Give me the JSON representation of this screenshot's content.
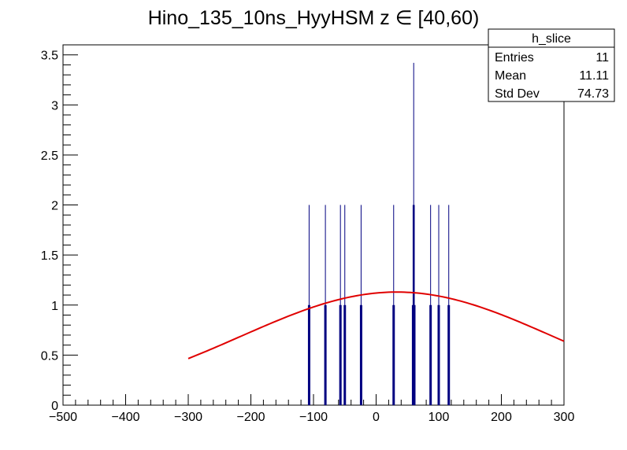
{
  "chart_data": {
    "type": "bar",
    "title": "Hino_135_10ns_HyyHSM z  ∈ [40,60)",
    "xlabel": "",
    "ylabel": "",
    "xlim": [
      -500,
      300
    ],
    "ylim": [
      0,
      3.6
    ],
    "x_ticks": [
      -500,
      -400,
      -300,
      -200,
      -100,
      0,
      100,
      200,
      300
    ],
    "x_tick_labels": [
      "−500",
      "−400",
      "−300",
      "−200",
      "−100",
      "0",
      "100",
      "200",
      "300"
    ],
    "y_ticks": [
      0,
      0.5,
      1,
      1.5,
      2,
      2.5,
      3,
      3.5
    ],
    "y_tick_labels": [
      "0",
      "0.5",
      "1",
      "1.5",
      "2",
      "2.5",
      "3",
      "3.5"
    ],
    "series": [
      {
        "color": "#000080",
        "x": [
          -107,
          -81,
          -57,
          -50,
          -24,
          28,
          59,
          61,
          87,
          100,
          116
        ],
        "values": [
          1,
          1,
          1,
          1,
          1,
          1,
          1,
          1,
          1,
          1,
          1
        ],
        "errors": [
          1,
          1,
          1,
          1,
          1,
          1,
          1,
          1,
          1,
          1,
          1
        ],
        "stat_error_x": 60,
        "stat_error_range": [
          0.58,
          3.42
        ]
      },
      {
        "type": "line",
        "color": "#e00000",
        "fit": "gaus",
        "constant": 1.13,
        "mean": 33,
        "sigma": 250,
        "x_range": [
          -300,
          300
        ]
      }
    ],
    "stats_box": {
      "title": "h_slice",
      "rows": [
        {
          "label": "Entries",
          "value": "11"
        },
        {
          "label": "Mean",
          "value": "11.11"
        },
        {
          "label": "Std Dev",
          "value": "74.73"
        }
      ]
    }
  }
}
